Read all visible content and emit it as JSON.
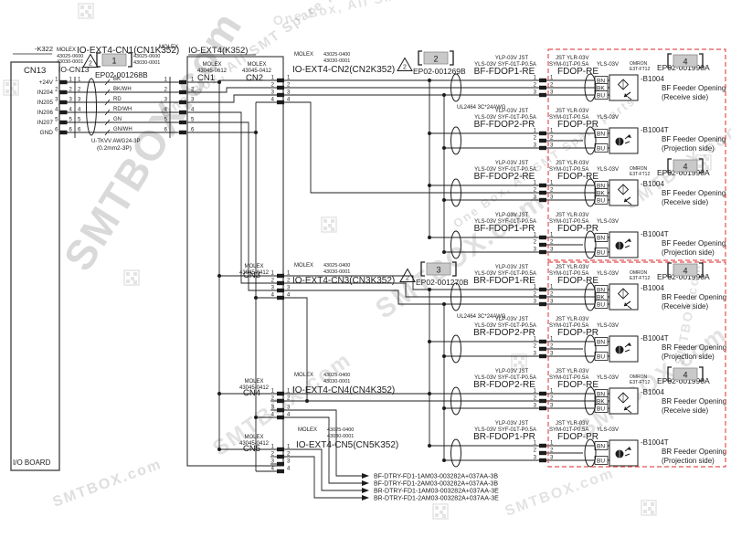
{
  "watermark": {
    "brand": "SMTBOX.com",
    "tagline": "One Box, All SMT Spare Parts"
  },
  "io_board": {
    "label": "I/O BOARD",
    "ref": "-K322",
    "connector": "CN13",
    "signals": [
      "+24V",
      "IN204",
      "IN205",
      "IN206",
      "IN207",
      "GND"
    ]
  },
  "pin_numbers": {
    "six": [
      "1",
      "2",
      "3",
      "4",
      "5",
      "6"
    ],
    "four": [
      "1",
      "2",
      "3",
      "4"
    ],
    "three": [
      "1",
      "2",
      "3"
    ]
  },
  "harness_cn1": {
    "mfr": "MOLEX",
    "pn1": "43025-0600",
    "pn2": "43030-0001",
    "left_name": "IO-CN13",
    "title": "IO-EXT4-CN1(CN1K352)",
    "note": "2",
    "tag": "1",
    "code": "EP02-001268B",
    "wire_colors": [
      "BK",
      "BK/WH",
      "RD",
      "RD/WH",
      "GN",
      "GN/WH"
    ],
    "cable": "U-TKVV AWG24-3P",
    "cable_size": "(0.2mm2-3P)"
  },
  "ext_box": {
    "title": "IO-EXT4(K352)",
    "mfr": "MOLEX",
    "cn1": {
      "name": "CN1",
      "pn": "43045-0612"
    },
    "branch_pn": "43045-0412",
    "branches": [
      "CN2",
      "CN3",
      "CN4",
      "CN5"
    ]
  },
  "branch_headers": [
    {
      "mfr": "MOLEX",
      "pn1": "43025-0400",
      "pn2": "43030-0001",
      "title": "IO-EXT4-CN2(CN2K352)",
      "note": "2",
      "tag": "2",
      "code": "EP02-001269B"
    },
    {
      "mfr": "MOLEX",
      "pn1": "43025-0400",
      "pn2": "43030-0001",
      "title": "IO-EXT4-CN3(CN3K352)",
      "note": "2",
      "tag": "3",
      "code": "EP02-001270B"
    },
    {
      "mfr": "MOLEX",
      "pn1": "43025-0400",
      "pn2": "43030-0001",
      "title": "IO-EXT4-CN4(CN4K352)"
    },
    {
      "mfr": "MOLEX",
      "pn1": "43025-0400",
      "pn2": "43030-0001",
      "title": "IO-EXT4-CN5(CN5K352)"
    }
  ],
  "cable_spec": "UL2464 3C*24AWG",
  "labels": {
    "cable_l1": "YLP-03V   JST",
    "cable_l2": "YLS-03V   SYF-01T-P0.5A",
    "plug_l1": "JST YLR-03V",
    "plug_l2": "SYM-01T-P0.5A",
    "plug_l2b": "YLS-03V",
    "receive": "(Receive side)",
    "projection": "(Projection side)",
    "omron": "OMRON",
    "model": "E3T-FT12",
    "sensor_tag": "4",
    "sensor_code": "EP02-001990A",
    "ref_re": "-B1004",
    "ref_pr": "-B1004T"
  },
  "sensor_groups": [
    {
      "desc": "BF Feeder Opening"
    },
    {
      "desc": "BR Feeder Opening"
    }
  ],
  "sensor_rows": [
    {
      "name": "BF-FDOP1-RE",
      "plug": "FDOP-RE",
      "type": "RE",
      "group": 0
    },
    {
      "name": "BF-FDOP2-PR",
      "plug": "FDOP-PR",
      "type": "PR",
      "group": 0
    },
    {
      "name": "BF-FDOP2-RE",
      "plug": "FDOP-RE",
      "type": "RE",
      "group": 0
    },
    {
      "name": "BF-FDOP1-PR",
      "plug": "FDOP-PR",
      "type": "PR",
      "group": 0
    },
    {
      "name": "BR-FDOP1-RE",
      "plug": "FDOP-RE",
      "type": "RE",
      "group": 1
    },
    {
      "name": "BR-FDOP2-PR",
      "plug": "FDOP-PR",
      "type": "PR",
      "group": 1
    },
    {
      "name": "BR-FDOP2-RE",
      "plug": "FDOP-RE",
      "type": "RE",
      "group": 1
    },
    {
      "name": "BR-FDOP1-PR",
      "plug": "FDOP-PR",
      "type": "PR",
      "group": 1
    }
  ],
  "wire_colors_sensor": [
    "BN",
    "BK",
    "BU"
  ],
  "outputs": [
    "BF-DTRY-FD1-1AM03-003282A+037AA-3B",
    "BF-DTRY-FD1-2AM03-003282A+037AA-3B",
    "BR-DTRY-FD1-1AM03-003282A+037AA-3E",
    "BR-DTRY-FD1-2AM03-003282A+037AA-3E"
  ],
  "colors": {
    "line": "#1c1c1c",
    "red": "#e25050",
    "tag_fill": "#c9c9c9",
    "tag_stroke": "#8a8a8a",
    "watermark": "#8a8a8a"
  }
}
